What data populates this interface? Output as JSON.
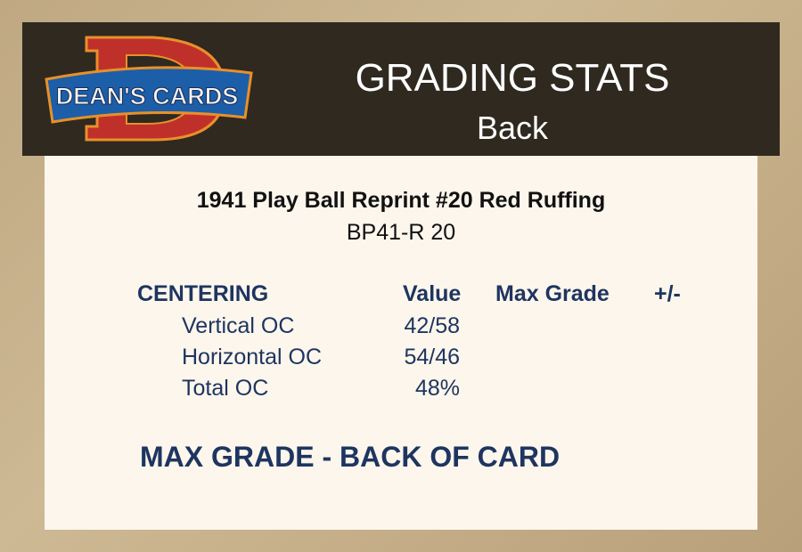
{
  "logo": {
    "text": "DEAN'S CARDS",
    "letter": "D"
  },
  "header": {
    "title": "GRADING STATS",
    "subtitle": "Back"
  },
  "card": {
    "name": "1941 Play Ball Reprint #20 Red Ruffing",
    "code": "BP41-R 20"
  },
  "table": {
    "section": "CENTERING",
    "columns": [
      "Value",
      "Max Grade",
      "+/-"
    ],
    "rows": [
      {
        "label": "Vertical OC",
        "value": "42/58"
      },
      {
        "label": "Horizontal OC",
        "value": "54/46"
      },
      {
        "label": "Total OC",
        "value": "48%"
      }
    ]
  },
  "footer": {
    "max_grade": "MAX GRADE - BACK OF CARD"
  },
  "colors": {
    "header_bg": "#2f2920",
    "panel_bg": "#fcf6ec",
    "text_navy": "#1e3560"
  }
}
